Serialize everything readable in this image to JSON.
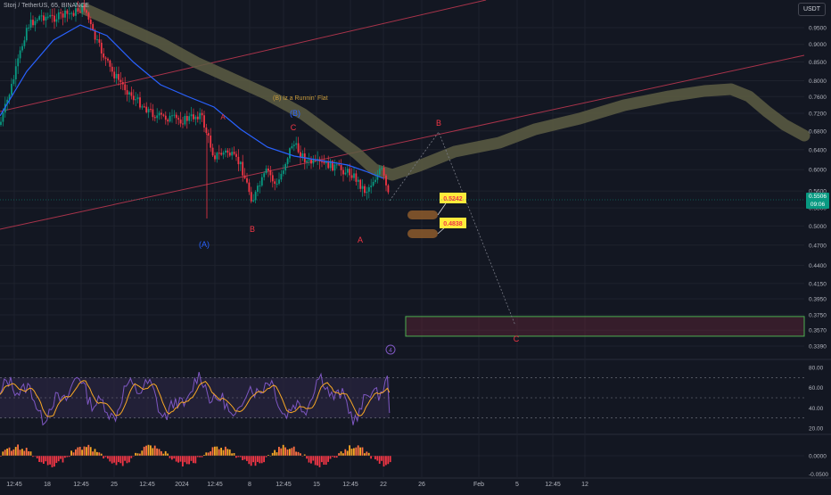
{
  "header": {
    "symbol_title": "Storj / TetherUS, 65, BINANCE",
    "currency": "USDT"
  },
  "price_tag": {
    "price": "0.5506",
    "countdown": "09:06"
  },
  "colors": {
    "background": "#131722",
    "up_candle": "#089981",
    "down_candle": "#f23645",
    "moving_average": "#2962ff",
    "olive_band": "#5d5d43",
    "channel": "#a8334a",
    "rsi_line": "#7e57c2",
    "rsi_ma": "#f9a825",
    "rsi_band": "#2a2540",
    "target_zone": "#4caf50",
    "target_label": "#ffeb3b"
  },
  "annotations": {
    "flat_note": "(B) Iz a Runnin' Flat",
    "wave_B_blue": "(B)",
    "wave_A_blue": "(A)",
    "wave_C_red": "C",
    "wave_A_red1": "A",
    "wave_B_red1": "B",
    "wave_A_red2": "A",
    "wave_B_proj": "B",
    "wave_C_proj": "C",
    "circle_4": "4",
    "target1": "0.5242",
    "target2": "0.4838"
  },
  "chart_data": {
    "type": "line",
    "title": "Storj / TetherUS, 65, BINANCE",
    "xlabel": "",
    "ylabel": "",
    "scale": "log",
    "ylim": [
      0.33,
      1.02
    ],
    "y_ticks": [
      "0.9500",
      "0.9000",
      "0.8500",
      "0.8000",
      "0.7600",
      "0.7200",
      "0.6800",
      "0.6400",
      "0.6000",
      "0.5600",
      "0.5300",
      "0.5000",
      "0.4700",
      "0.4400",
      "0.4150",
      "0.3950",
      "0.3750",
      "0.3570",
      "0.3390"
    ],
    "x_ticks": [
      "12:45",
      "18",
      "12:45",
      "25",
      "12:45",
      "2024",
      "12:45",
      "8",
      "12:45",
      "15",
      "12:45",
      "22",
      "26",
      "Feb",
      "5",
      "12:45",
      "12"
    ],
    "grid": true,
    "legend": "none",
    "series": [
      {
        "name": "",
        "kind": "price",
        "points": [
          [
            "12:45",
            0.72
          ],
          [
            "18",
            0.98
          ],
          [
            "12:45",
            0.96
          ],
          [
            "25",
            0.8
          ],
          [
            "12:45",
            0.71
          ],
          [
            "2024",
            0.66
          ],
          [
            "12:45",
            0.6
          ],
          [
            "8",
            0.53
          ],
          [
            "12:45",
            0.61
          ],
          [
            "15",
            0.6
          ],
          [
            "12:45",
            0.56
          ],
          [
            "22",
            0.55
          ]
        ]
      }
    ],
    "target_zone": [
      0.35,
      0.373
    ],
    "rsi": {
      "y_ticks": [
        "80.00",
        "60.00",
        "40.00",
        "20.00"
      ],
      "band": [
        30,
        70
      ],
      "last": 35
    },
    "histogram": {
      "y_ticks": [
        "0.0000",
        "-0.0500"
      ]
    }
  }
}
